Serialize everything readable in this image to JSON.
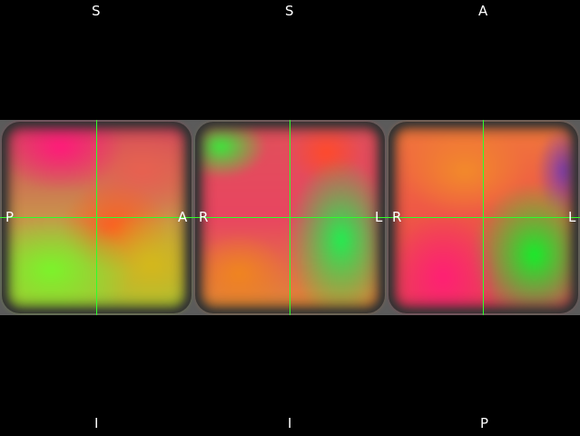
{
  "views": [
    {
      "name": "sagittal",
      "top": "S",
      "bottom": "I",
      "left": "P",
      "right": "A"
    },
    {
      "name": "coronal",
      "top": "S",
      "bottom": "I",
      "left": "R",
      "right": "L"
    },
    {
      "name": "axial",
      "top": "A",
      "bottom": "P",
      "left": "R",
      "right": "L"
    }
  ],
  "crosshair_color": "#2cff2c",
  "background_color": "#000000"
}
